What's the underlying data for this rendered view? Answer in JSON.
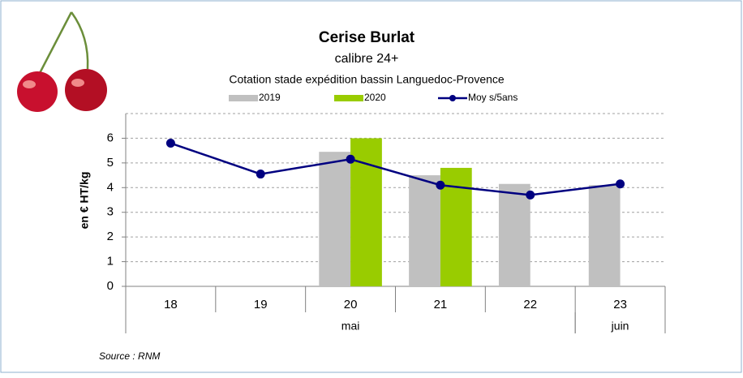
{
  "chart_data": {
    "type": "bar",
    "title": "Cerise Burlat",
    "subtitle": "calibre 24+",
    "description": "Cotation stade expédition bassin Languedoc-Provence",
    "y_axis_label": "en € HT/kg",
    "source": "Source : RNM",
    "categories": [
      "18",
      "19",
      "20",
      "21",
      "22",
      "23"
    ],
    "groups": [
      {
        "label": "mai",
        "count": 5
      },
      {
        "label": "juin",
        "count": 1
      }
    ],
    "series": [
      {
        "name": "2019",
        "type": "bar",
        "color": "#c0c0c0",
        "values": [
          null,
          null,
          5.45,
          4.5,
          4.15,
          4.1
        ]
      },
      {
        "name": "2020",
        "type": "bar",
        "color": "#99cc00",
        "values": [
          null,
          null,
          6.0,
          4.8,
          null,
          null
        ]
      },
      {
        "name": "Moy s/5ans",
        "type": "line",
        "color": "#000080",
        "values": [
          5.8,
          4.55,
          5.15,
          4.1,
          3.7,
          4.15
        ]
      }
    ],
    "ylim": [
      0,
      7
    ],
    "yticks": [
      0,
      1,
      2,
      3,
      4,
      5,
      6
    ],
    "grid": true
  }
}
